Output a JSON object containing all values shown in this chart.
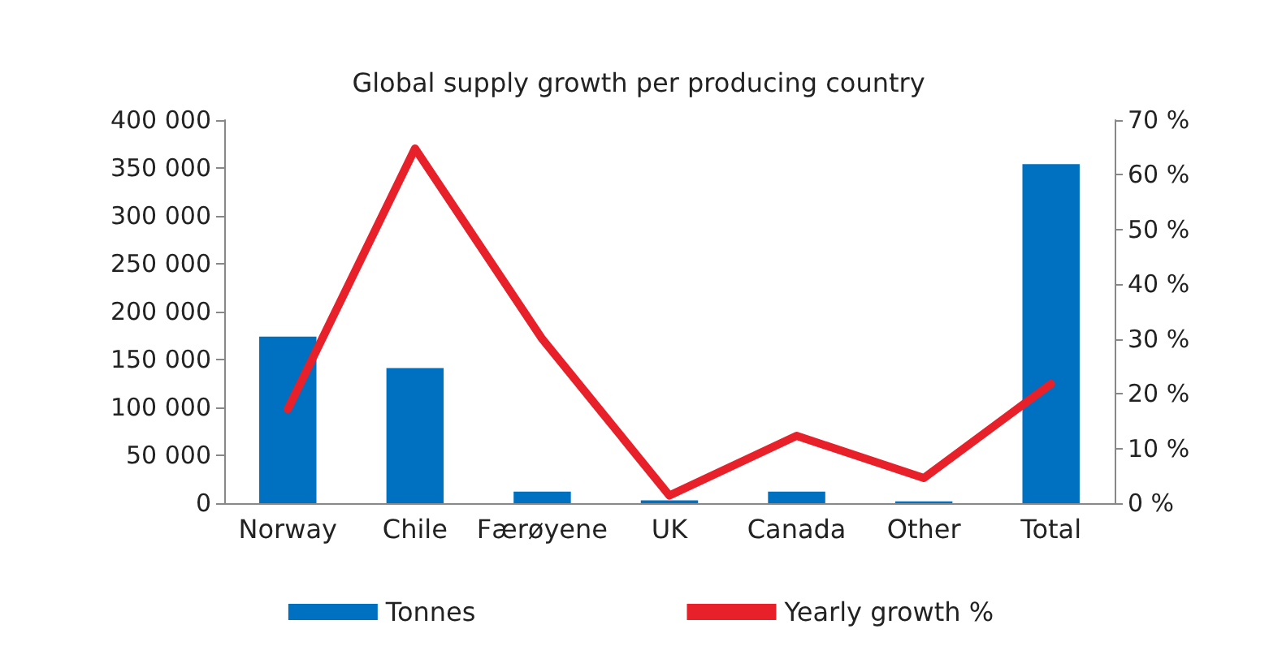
{
  "chart_data": {
    "type": "bar",
    "title": "Global supply growth per producing country",
    "categories": [
      "Norway",
      "Chile",
      "Færøyene",
      "UK",
      "Canada",
      "Other",
      "Total"
    ],
    "series": [
      {
        "name": "Tonnes",
        "color": "#0070c0",
        "values": [
          174000,
          141000,
          12000,
          3000,
          12000,
          2000,
          354000
        ]
      },
      {
        "name": "Yearly growth %",
        "type": "line",
        "axis": "y2",
        "color": "#e8202a",
        "values": [
          17.2,
          64.8,
          30,
          1.4,
          12.3,
          4.6,
          21.8
        ]
      }
    ],
    "ylim": [
      0,
      400000
    ],
    "yticks": [
      0,
      {
        "value": 50000,
        "label": "50 000"
      },
      {
        "value": 100000,
        "label": "100 000"
      },
      {
        "value": 150000,
        "label": "150 000"
      },
      {
        "value": 200000,
        "label": "200 000"
      },
      {
        "value": 250000,
        "label": "250 000"
      },
      {
        "value": 300000,
        "label": "300 000"
      },
      {
        "value": 350000,
        "label": "350 000"
      },
      {
        "value": 400000,
        "label": "400 000"
      }
    ],
    "y2lim": [
      0,
      70
    ],
    "y2ticks": [
      {
        "value": 0,
        "label": "0 %"
      },
      {
        "value": 10,
        "label": "10 %"
      },
      {
        "value": 20,
        "label": "20 %"
      },
      {
        "value": 30,
        "label": "30 %"
      },
      {
        "value": 40,
        "label": "40 %"
      },
      {
        "value": 50,
        "label": "50 %"
      },
      {
        "value": 60,
        "label": "60 %"
      },
      {
        "value": 70,
        "label": "70 %"
      }
    ],
    "grid": false,
    "legend": "bottom",
    "marker": "none",
    "line_style": "solid"
  }
}
